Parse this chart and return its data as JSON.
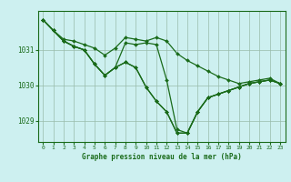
{
  "background_color": "#cdf0f0",
  "plot_bg_color": "#cdf0f0",
  "line_color": "#1a6b1a",
  "marker_color": "#1a6b1a",
  "grid_color": "#99bbaa",
  "xlabel": "Graphe pression niveau de la mer (hPa)",
  "ylim": [
    1028.4,
    1032.1
  ],
  "xlim": [
    -0.5,
    23.5
  ],
  "yticks": [
    1029,
    1030,
    1031
  ],
  "xticks": [
    0,
    1,
    2,
    3,
    4,
    5,
    6,
    7,
    8,
    9,
    10,
    11,
    12,
    13,
    14,
    15,
    16,
    17,
    18,
    19,
    20,
    21,
    22,
    23
  ],
  "series": [
    [
      1031.85,
      1031.55,
      1031.3,
      1031.25,
      1031.15,
      1031.05,
      1030.85,
      1031.05,
      1031.35,
      1031.3,
      1031.25,
      1031.35,
      1031.25,
      1030.9,
      1030.7,
      1030.55,
      1030.4,
      1030.25,
      1030.15,
      1030.05,
      1030.1,
      1030.15,
      1030.2,
      1030.05
    ],
    [
      1031.85,
      1031.55,
      1031.25,
      1031.1,
      1031.0,
      1030.6,
      1030.28,
      1030.5,
      1030.65,
      1030.5,
      1029.95,
      1029.55,
      1029.25,
      1028.65,
      1028.65,
      1029.25,
      1029.65,
      1029.75,
      1029.85,
      1029.95,
      1030.05,
      1030.1,
      1030.15,
      1030.05
    ],
    [
      1031.85,
      1031.55,
      1031.25,
      1031.1,
      1031.0,
      1030.6,
      1030.28,
      1030.5,
      1031.2,
      1031.15,
      1031.2,
      1031.15,
      1030.15,
      1028.75,
      1028.65,
      1029.25,
      1029.65,
      1029.75,
      1029.85,
      1029.95,
      1030.05,
      1030.1,
      1030.15,
      1030.05
    ],
    [
      1031.85,
      1031.55,
      1031.25,
      1031.1,
      1031.0,
      1030.6,
      1030.28,
      1030.5,
      1030.65,
      1030.5,
      1029.95,
      1029.55,
      1029.25,
      1028.65,
      1028.65,
      1029.25,
      1029.65,
      1029.75,
      1029.85,
      1029.95,
      1030.05,
      1030.1,
      1030.15,
      1030.05
    ]
  ]
}
